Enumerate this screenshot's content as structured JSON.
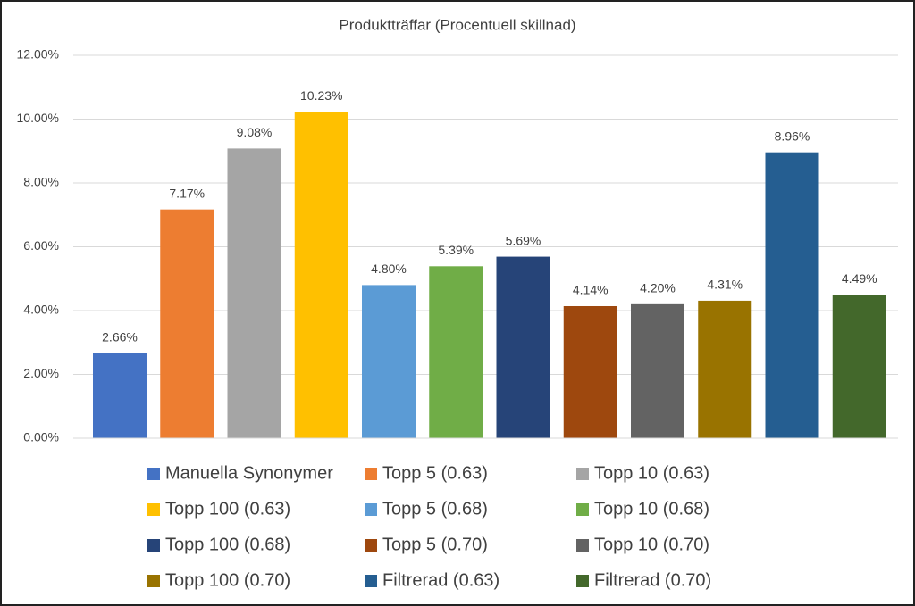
{
  "chart_data": {
    "type": "bar",
    "title": "Produktträffar (Procentuell skillnad)",
    "categories": [
      null
    ],
    "series": [
      {
        "name": "Manuella Synonymer",
        "color": "#4472c4",
        "values": [
          2.66
        ],
        "value_labels": [
          "2.66%"
        ]
      },
      {
        "name": "Topp 5 (0.63)",
        "color": "#ed7d31",
        "values": [
          7.17
        ],
        "value_labels": [
          "7.17%"
        ]
      },
      {
        "name": "Topp 10 (0.63)",
        "color": "#a5a5a5",
        "values": [
          9.08
        ],
        "value_labels": [
          "9.08%"
        ]
      },
      {
        "name": "Topp 100 (0.63)",
        "color": "#ffc000",
        "values": [
          10.23
        ],
        "value_labels": [
          "10.23%"
        ]
      },
      {
        "name": "Topp 5 (0.68)",
        "color": "#5b9bd5",
        "values": [
          4.8
        ],
        "value_labels": [
          "4.80%"
        ]
      },
      {
        "name": "Topp 10 (0.68)",
        "color": "#70ad47",
        "values": [
          5.39
        ],
        "value_labels": [
          "5.39%"
        ]
      },
      {
        "name": "Topp 100 (0.68)",
        "color": "#264478",
        "values": [
          5.69
        ],
        "value_labels": [
          "5.69%"
        ]
      },
      {
        "name": "Topp 5 (0.70)",
        "color": "#9e480e",
        "values": [
          4.14
        ],
        "value_labels": [
          "4.14%"
        ]
      },
      {
        "name": "Topp 10 (0.70)",
        "color": "#636363",
        "values": [
          4.2
        ],
        "value_labels": [
          "4.20%"
        ]
      },
      {
        "name": "Topp 100 (0.70)",
        "color": "#997300",
        "values": [
          4.31
        ],
        "value_labels": [
          "4.31%"
        ]
      },
      {
        "name": "Filtrerad (0.63)",
        "color": "#255e91",
        "values": [
          8.96
        ],
        "value_labels": [
          "8.96%"
        ]
      },
      {
        "name": "Filtrerad (0.70)",
        "color": "#43682b",
        "values": [
          4.49
        ],
        "value_labels": [
          "4.49%"
        ]
      }
    ],
    "ylim": [
      0,
      12
    ],
    "yticks": [
      {
        "value": 0,
        "label": "0.00%"
      },
      {
        "value": 2,
        "label": "2.00%"
      },
      {
        "value": 4,
        "label": "4.00%"
      },
      {
        "value": 6,
        "label": "6.00%"
      },
      {
        "value": 8,
        "label": "8.00%"
      },
      {
        "value": 10,
        "label": "10.00%"
      },
      {
        "value": 12,
        "label": "12.00%"
      }
    ],
    "grid": true,
    "legend": "bottom"
  }
}
